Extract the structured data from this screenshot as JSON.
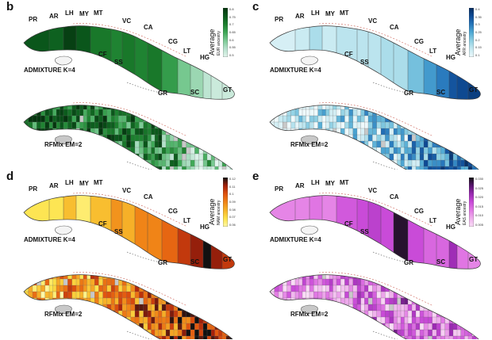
{
  "panels": [
    {
      "id": "b",
      "letter": "b",
      "legend": {
        "title": "Average",
        "subtitle": "EUR ancestry",
        "ticks": [
          "0.8",
          "0.75",
          "0.7",
          "0.65",
          "0.6",
          "0.55",
          "0.5"
        ]
      },
      "methods": {
        "top": "ADMIXTURE K=4",
        "bottom": "RFMix EM=2"
      },
      "palette": {
        "low": "#d8f1ea",
        "high": "#0b5a1c",
        "ramp": [
          "#e3f5ee",
          "#b9e3cf",
          "#7ccb95",
          "#3fa857",
          "#1c7f2e",
          "#0b5a1c",
          "#05350f"
        ]
      },
      "top_fill": {
        "PR": 0.85,
        "AR": 0.8,
        "LH": 0.95,
        "MY": 0.85,
        "MT": 0.7,
        "VC": 0.7,
        "CF": 0.65,
        "SS": 0.65,
        "CA": 0.7,
        "CG": 0.55,
        "LT": 0.35,
        "HG": 0.25,
        "GR": 0.15,
        "SC": 0.1,
        "GT": 0.1
      },
      "bottom_fill": {
        "PR": 0.75,
        "AR": 0.8,
        "LH": 0.85,
        "MY": 0.75,
        "MT": 0.7,
        "VC": 0.65,
        "CF": 0.6,
        "SS": 0.55,
        "CA": 0.6,
        "CG": 0.5,
        "LT": 0.4,
        "HG": 0.3,
        "GR": 0.3,
        "SC": 0.2,
        "GT": 0.2
      }
    },
    {
      "id": "c",
      "letter": "c",
      "legend": {
        "title": "Average",
        "subtitle": "AFR ancestry",
        "ticks": [
          "0.4",
          "0.35",
          "0.3",
          "0.25",
          "0.2",
          "0.15",
          "0.1"
        ]
      },
      "methods": {
        "top": "ADMIXTURE K=4",
        "bottom": "RFMix EM=2"
      },
      "palette": {
        "low": "#e6f6fa",
        "high": "#083a7a",
        "ramp": [
          "#eef9fb",
          "#c6e9f1",
          "#8fd0e3",
          "#4fa9d4",
          "#2676bb",
          "#0f4c97",
          "#062c5e"
        ]
      },
      "top_fill": {
        "PR": 0.1,
        "AR": 0.15,
        "LH": 0.25,
        "MY": 0.15,
        "MT": 0.2,
        "VC": 0.2,
        "CF": 0.2,
        "SS": 0.25,
        "CA": 0.25,
        "CG": 0.4,
        "LT": 0.55,
        "HG": 0.65,
        "GR": 0.8,
        "SC": 0.85,
        "GT": 0.9
      },
      "bottom_fill": {
        "PR": 0.1,
        "AR": 0.15,
        "LH": 0.2,
        "MY": 0.2,
        "MT": 0.25,
        "VC": 0.3,
        "CF": 0.3,
        "SS": 0.35,
        "CA": 0.3,
        "CG": 0.45,
        "LT": 0.55,
        "HG": 0.6,
        "GR": 0.7,
        "SC": 0.75,
        "GT": 0.8
      }
    },
    {
      "id": "d",
      "letter": "d",
      "legend": {
        "title": "Average",
        "subtitle": "NAM ancestry",
        "ticks": [
          "0.12",
          "0.11",
          "0.1",
          "0.09",
          "0.08",
          "0.07",
          "0.06"
        ]
      },
      "methods": {
        "top": "ADMIXTURE K=4",
        "bottom": "RFMix EM=2"
      },
      "palette": {
        "low": "#fffbb0",
        "high": "#000000",
        "ramp": [
          "#fff9a8",
          "#fde34a",
          "#f7b52a",
          "#f08417",
          "#e0520f",
          "#a4200a",
          "#111111"
        ]
      },
      "top_fill": {
        "PR": 0.15,
        "AR": 0.15,
        "LH": 0.3,
        "MY": 0.1,
        "MT": 0.3,
        "VC": 0.35,
        "CF": 0.45,
        "SS": 0.5,
        "CA": 0.5,
        "CG": 0.6,
        "LT": 0.75,
        "HG": 0.85,
        "GR": 1.0,
        "SC": 0.85,
        "GT": 0.75
      },
      "bottom_fill": {
        "PR": 0.3,
        "AR": 0.35,
        "LH": 0.45,
        "MY": 0.35,
        "MT": 0.45,
        "VC": 0.5,
        "CF": 0.55,
        "SS": 0.6,
        "CA": 0.6,
        "CG": 0.65,
        "LT": 0.75,
        "HG": 0.85,
        "GR": 0.95,
        "SC": 0.9,
        "GT": 0.85
      }
    },
    {
      "id": "e",
      "letter": "e",
      "legend": {
        "title": "Average",
        "subtitle": "EAS ancestry",
        "ticks": [
          "0.030",
          "0.025",
          "0.020",
          "0.015",
          "0.010",
          "0.005"
        ]
      },
      "methods": {
        "top": "ADMIXTURE K=4",
        "bottom": "RFMix EM=2"
      },
      "palette": {
        "low": "#f8d8f5",
        "high": "#0a0a0a",
        "ramp": [
          "#f9ddf6",
          "#efb0ec",
          "#e27ae4",
          "#c94bd8",
          "#9a2ab2",
          "#5a1570",
          "#111111"
        ]
      },
      "top_fill": {
        "PR": 0.3,
        "AR": 0.3,
        "LH": 0.35,
        "MY": 0.3,
        "MT": 0.45,
        "VC": 0.55,
        "CF": 0.5,
        "SS": 0.5,
        "CA": 0.95,
        "CG": 0.5,
        "LT": 0.4,
        "HG": 0.4,
        "GR": 0.65,
        "SC": 0.35,
        "GT": 0.3
      },
      "bottom_fill": {
        "PR": 0.2,
        "AR": 0.2,
        "LH": 0.3,
        "MY": 0.25,
        "MT": 0.3,
        "VC": 0.35,
        "CF": 0.3,
        "SS": 0.3,
        "CA": 0.45,
        "CG": 0.3,
        "LT": 0.35,
        "HG": 0.3,
        "GR": 0.35,
        "SC": 0.25,
        "GT": 0.25
      }
    }
  ],
  "province_labels": [
    "PR",
    "AR",
    "LH",
    "MY",
    "MT",
    "VC",
    "CA",
    "CG",
    "CF",
    "SS",
    "LT",
    "HG",
    "GR",
    "SC",
    "GT"
  ],
  "colors": {
    "unsampled": "#c8c8c8",
    "outline": "#4a4a4a",
    "coast_red": "#c0392b"
  }
}
